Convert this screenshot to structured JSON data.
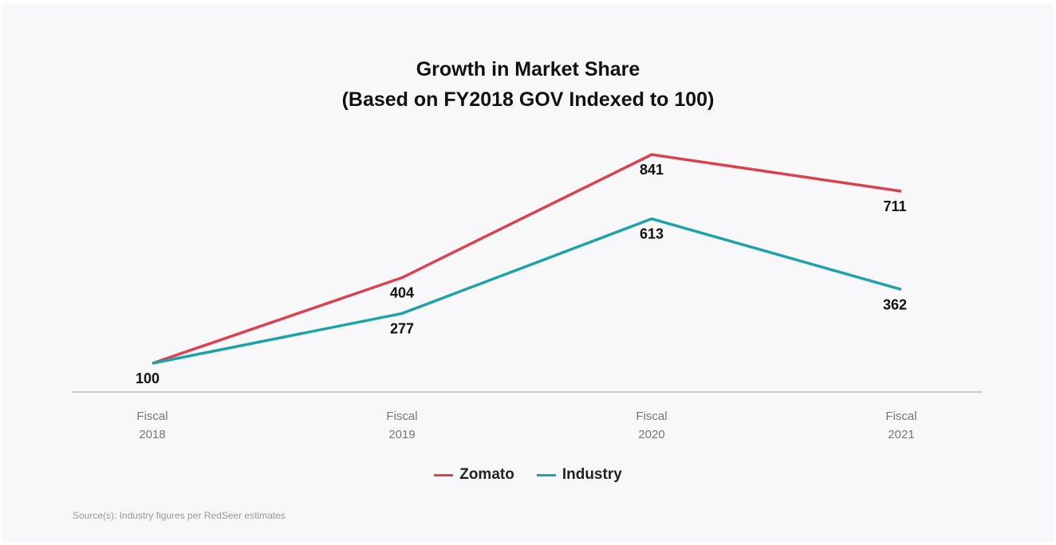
{
  "chart_data": {
    "type": "line",
    "title": "Growth in Market Share",
    "subtitle": "(Based on FY2018 GOV Indexed to 100)",
    "categories": [
      [
        "Fiscal",
        "2018"
      ],
      [
        "Fiscal",
        "2019"
      ],
      [
        "Fiscal",
        "2020"
      ],
      [
        "Fiscal",
        "2021"
      ]
    ],
    "series": [
      {
        "name": "Zomato",
        "color": "#d9434f",
        "values": [
          100,
          404,
          841,
          711
        ],
        "labels": [
          "100",
          "404",
          "841",
          "711"
        ]
      },
      {
        "name": "Industry",
        "color": "#1fa3a8",
        "values": [
          100,
          277,
          613,
          362
        ],
        "labels": [
          "",
          "277",
          "613",
          "362"
        ]
      }
    ],
    "xlabel": "",
    "ylabel": "",
    "ylim": [
      0,
      900
    ],
    "grid": false,
    "legend": "bottom-center",
    "source": "Source(s): Industry figures per RedSeer estimates"
  }
}
